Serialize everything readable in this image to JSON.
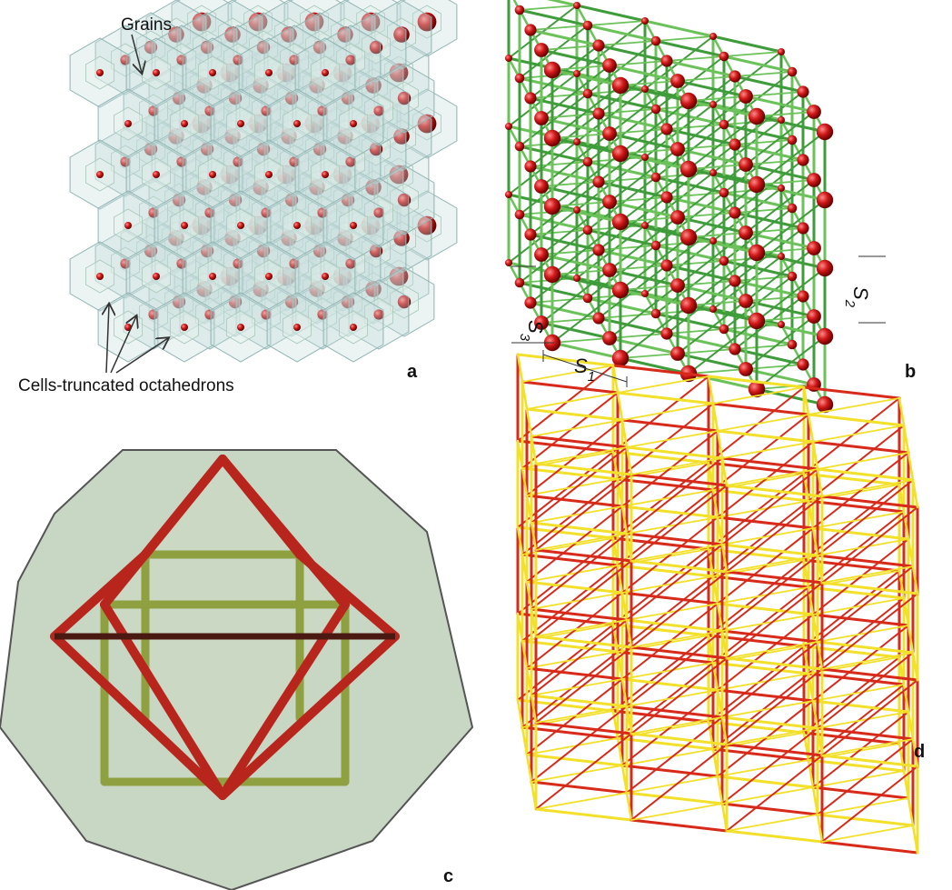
{
  "panels": {
    "a": {
      "label": "a",
      "annotations": [
        "Grains",
        "Cells-truncated octahedrons"
      ]
    },
    "b": {
      "label": "b",
      "dimensions": [
        {
          "symbol": "S",
          "subscript": "1"
        },
        {
          "symbol": "S",
          "subscript": "2"
        },
        {
          "symbol": "S",
          "subscript": "3"
        }
      ]
    },
    "c": {
      "label": "c"
    },
    "d": {
      "label": "d"
    }
  }
}
